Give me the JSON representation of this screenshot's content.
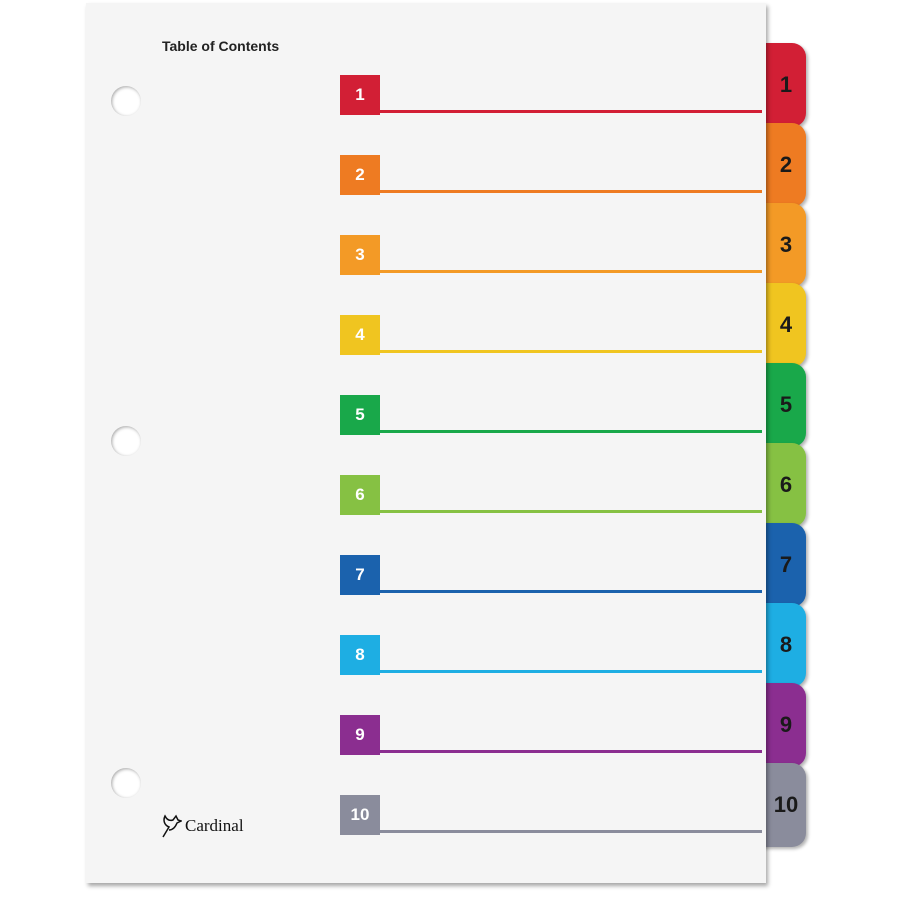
{
  "title": "Table of Contents",
  "logo": "Cardinal",
  "logo_icon": "cardinal-bird-icon",
  "entries": [
    {
      "label": "1",
      "color": "#d21f35"
    },
    {
      "label": "2",
      "color": "#ee7b22"
    },
    {
      "label": "3",
      "color": "#f39a26"
    },
    {
      "label": "4",
      "color": "#f0c520"
    },
    {
      "label": "5",
      "color": "#19a84a"
    },
    {
      "label": "6",
      "color": "#86c143"
    },
    {
      "label": "7",
      "color": "#1b62ad"
    },
    {
      "label": "8",
      "color": "#1eaee3"
    },
    {
      "label": "9",
      "color": "#8b2e90"
    },
    {
      "label": "10",
      "color": "#8a8c9c"
    }
  ]
}
